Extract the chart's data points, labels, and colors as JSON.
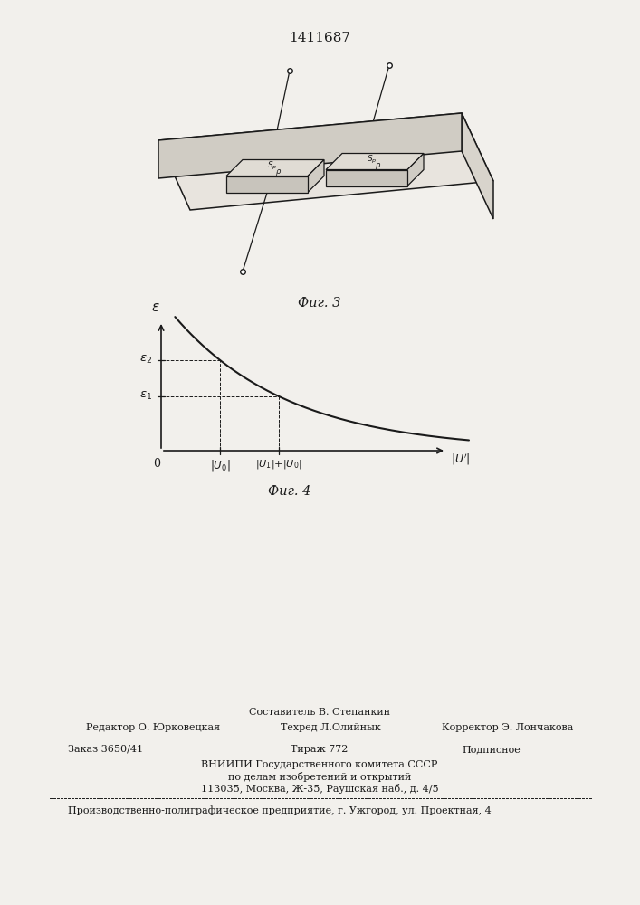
{
  "patent_number": "1411687",
  "fig3_caption": "Фиг. 3",
  "fig4_caption": "Фиг. 4",
  "background_color": "#f2f0ec",
  "line_color": "#1a1a1a",
  "footer_line1_center": "Составитель В. Степанкин",
  "footer_line2_left": "Редактор О. Юрковецкая",
  "footer_line2_mid": "Техред Л.Олийнык",
  "footer_line2_right": "Корректор Э. Лончакова",
  "footer_order": "Заказ 3650/41",
  "footer_tirage": "Тираж 772",
  "footer_podp": "Подписное",
  "footer_org1": "ВНИИПИ Государственного комитета СССР",
  "footer_org2": "по делам изобретений и открытий",
  "footer_org3": "113035, Москва, Ж-35, Раушская наб., д. 4/5",
  "footer_prod": "Производственно-полиграфическое предприятие, г. Ужгород, ул. Проектная, 4"
}
